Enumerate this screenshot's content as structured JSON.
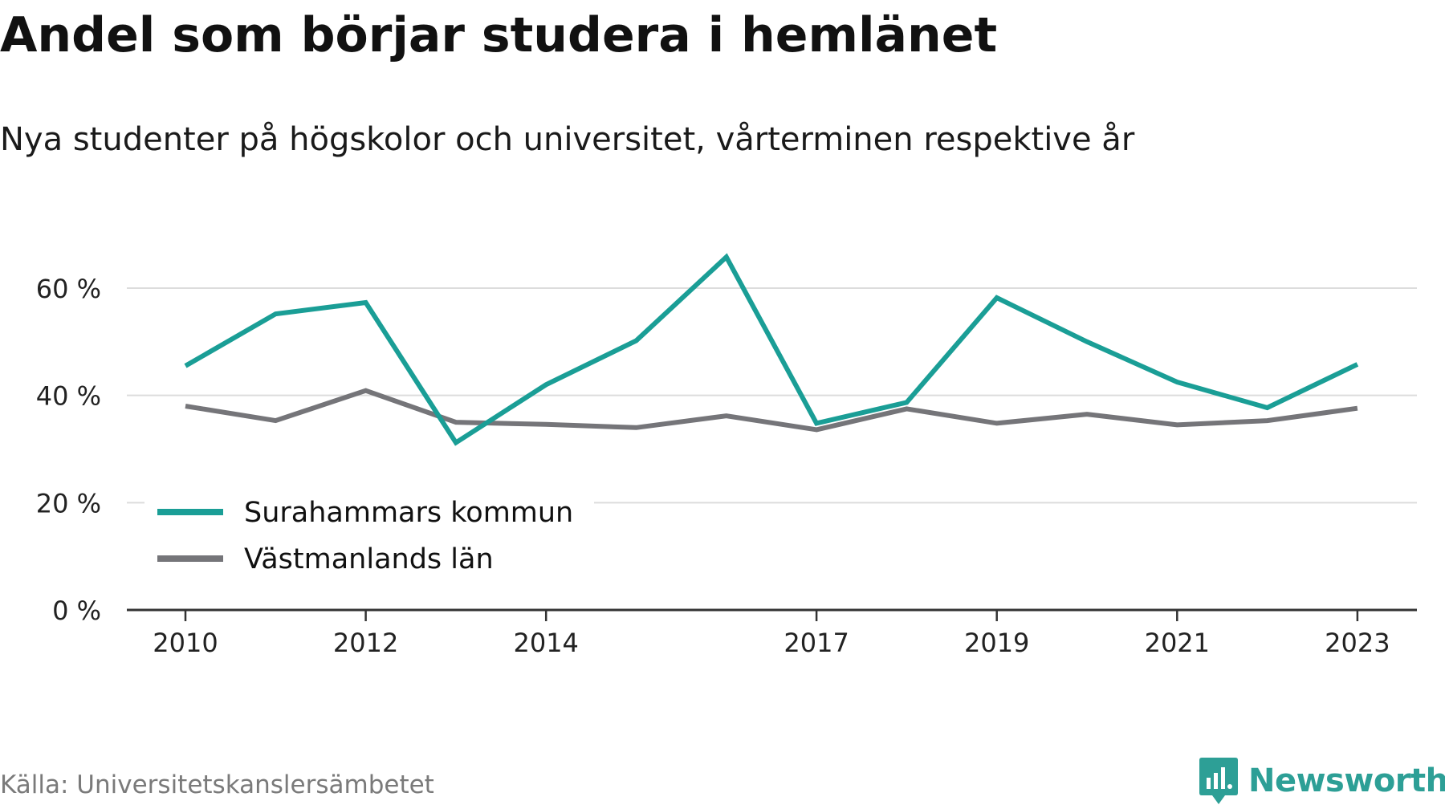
{
  "title": "Andel som börjar studera i hemlänet",
  "subtitle": "Nya studenter på högskolor och universitet, vårterminen respektive år",
  "source": "Källa: Universitetskanslersämbetet",
  "brand": "Newsworthy",
  "colors": {
    "series_1": "#1a9e96",
    "series_2": "#757579",
    "grid": "#dcdcdc",
    "axis": "#333333",
    "brand": "#2d9f96"
  },
  "chart_data": {
    "type": "line",
    "x": [
      2010,
      2011,
      2012,
      2013,
      2014,
      2015,
      2016,
      2017,
      2018,
      2019,
      2020,
      2021,
      2022,
      2023
    ],
    "x_tick_labels": [
      "2010",
      "2012",
      "2014",
      "2017",
      "2019",
      "2021",
      "2023"
    ],
    "y_tick_values": [
      0,
      20,
      40,
      60
    ],
    "y_tick_labels": [
      "0 %",
      "20 %",
      "40 %",
      "60 %"
    ],
    "ylim": [
      0,
      67
    ],
    "grid": true,
    "legend_position": "bottom-left",
    "series": [
      {
        "name": "Surahammars kommun",
        "color": "#1a9e96",
        "values": [
          45.5,
          55.2,
          57.3,
          31.2,
          42.0,
          50.2,
          65.8,
          34.8,
          38.7,
          58.2,
          50.0,
          42.5,
          37.7,
          45.8
        ]
      },
      {
        "name": "Västmanlands län",
        "color": "#757579",
        "values": [
          38.0,
          35.3,
          40.9,
          35.0,
          34.6,
          34.0,
          36.2,
          33.6,
          37.5,
          34.8,
          36.5,
          34.5,
          35.3,
          37.6
        ]
      }
    ]
  }
}
